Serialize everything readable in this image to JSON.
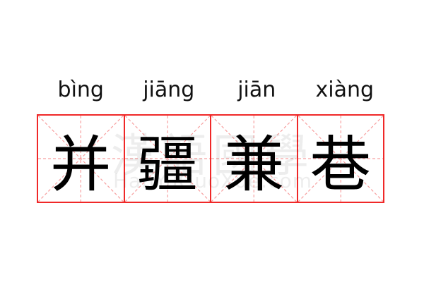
{
  "pinyin": [
    "bìng",
    "jiāng",
    "jiān",
    "xiàng"
  ],
  "characters": [
    "并",
    "疆",
    "兼",
    "巷"
  ],
  "watermark": {
    "chinese": "漢語國學",
    "latin": "HanYuGuoXue.com"
  },
  "colors": {
    "grid_border": "#f02828",
    "guide_lines": "#f7a0a0",
    "text": "#000000"
  }
}
